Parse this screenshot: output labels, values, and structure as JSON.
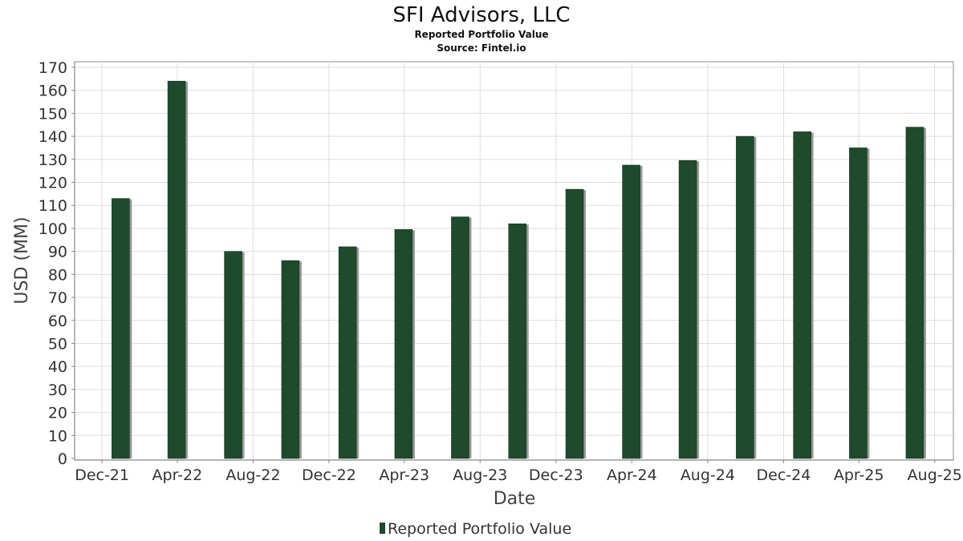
{
  "chart_data": {
    "type": "bar",
    "title": "SFI Advisors, LLC",
    "subtitle": "Reported Portfolio Value",
    "source": "Source: Fintel.io",
    "xlabel": "Date",
    "ylabel": "USD (MM)",
    "ylim": [
      0,
      170
    ],
    "yticks": [
      0,
      10,
      20,
      30,
      40,
      50,
      60,
      70,
      80,
      90,
      100,
      110,
      120,
      130,
      140,
      150,
      160,
      170
    ],
    "xlim": [
      "2021-10-18",
      "2025-08-31"
    ],
    "xticks": [
      {
        "date": "2021-12-01",
        "label": "Dec-21"
      },
      {
        "date": "2022-04-01",
        "label": "Apr-22"
      },
      {
        "date": "2022-08-01",
        "label": "Aug-22"
      },
      {
        "date": "2022-12-01",
        "label": "Dec-22"
      },
      {
        "date": "2023-04-01",
        "label": "Apr-23"
      },
      {
        "date": "2023-08-01",
        "label": "Aug-23"
      },
      {
        "date": "2023-12-01",
        "label": "Dec-23"
      },
      {
        "date": "2024-04-01",
        "label": "Apr-24"
      },
      {
        "date": "2024-08-01",
        "label": "Aug-24"
      },
      {
        "date": "2024-12-01",
        "label": "Dec-24"
      },
      {
        "date": "2025-04-01",
        "label": "Apr-25"
      },
      {
        "date": "2025-08-01",
        "label": "Aug-25"
      }
    ],
    "grid": true,
    "legend_position": "bottom",
    "series": [
      {
        "name": "Reported Portfolio Value",
        "color": "#1f4a2b",
        "points": [
          {
            "date": "2021-12-31",
            "value": 113
          },
          {
            "date": "2022-03-31",
            "value": 164
          },
          {
            "date": "2022-06-30",
            "value": 90
          },
          {
            "date": "2022-09-30",
            "value": 86
          },
          {
            "date": "2022-12-31",
            "value": 92
          },
          {
            "date": "2023-03-31",
            "value": 99.5
          },
          {
            "date": "2023-06-30",
            "value": 105
          },
          {
            "date": "2023-09-30",
            "value": 102
          },
          {
            "date": "2023-12-31",
            "value": 117
          },
          {
            "date": "2024-03-31",
            "value": 127.5
          },
          {
            "date": "2024-06-30",
            "value": 129.5
          },
          {
            "date": "2024-09-30",
            "value": 140
          },
          {
            "date": "2024-12-31",
            "value": 142
          },
          {
            "date": "2025-03-31",
            "value": 135
          },
          {
            "date": "2025-06-30",
            "value": 144
          }
        ]
      }
    ]
  }
}
